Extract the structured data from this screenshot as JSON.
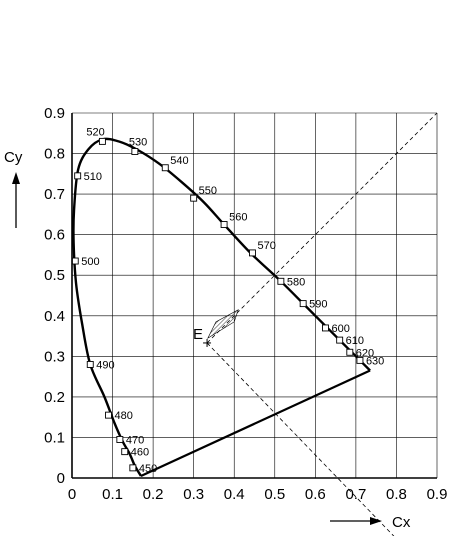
{
  "chart_data": {
    "type": "line",
    "title": "",
    "xlabel": "Cx",
    "ylabel": "Cy",
    "xlim": [
      0,
      0.9
    ],
    "ylim": [
      0,
      0.9
    ],
    "grid": true,
    "x_ticks": [
      "0",
      "0.1",
      "0.2",
      "0.3",
      "0.4",
      "0.5",
      "0.6",
      "0.7",
      "0.8",
      "0.9"
    ],
    "y_ticks": [
      "0",
      "0.1",
      "0.2",
      "0.3",
      "0.4",
      "0.5",
      "0.6",
      "0.7",
      "0.8",
      "0.9"
    ],
    "spectral_locus": {
      "x": [
        0.17,
        0.155,
        0.142,
        0.125,
        0.105,
        0.08,
        0.045,
        0.025,
        0.01,
        0.004,
        0.005,
        0.015,
        0.04,
        0.075,
        0.115,
        0.16,
        0.215,
        0.27,
        0.325,
        0.375,
        0.44,
        0.515,
        0.575,
        0.625,
        0.66,
        0.69,
        0.72,
        0.735
      ],
      "y": [
        0.005,
        0.03,
        0.06,
        0.09,
        0.135,
        0.2,
        0.28,
        0.38,
        0.48,
        0.58,
        0.66,
        0.76,
        0.81,
        0.835,
        0.83,
        0.81,
        0.775,
        0.73,
        0.68,
        0.625,
        0.555,
        0.485,
        0.425,
        0.375,
        0.34,
        0.31,
        0.28,
        0.265
      ]
    },
    "wavelength_markers": [
      {
        "label": "450",
        "x": 0.15,
        "y": 0.025
      },
      {
        "label": "460",
        "x": 0.13,
        "y": 0.065
      },
      {
        "label": "470",
        "x": 0.118,
        "y": 0.095
      },
      {
        "label": "480",
        "x": 0.09,
        "y": 0.155
      },
      {
        "label": "490",
        "x": 0.045,
        "y": 0.28
      },
      {
        "label": "500",
        "x": 0.008,
        "y": 0.535
      },
      {
        "label": "510",
        "x": 0.014,
        "y": 0.745
      },
      {
        "label": "520",
        "x": 0.075,
        "y": 0.83
      },
      {
        "label": "530",
        "x": 0.155,
        "y": 0.805
      },
      {
        "label": "540",
        "x": 0.23,
        "y": 0.765
      },
      {
        "label": "550",
        "x": 0.3,
        "y": 0.69
      },
      {
        "label": "560",
        "x": 0.375,
        "y": 0.625
      },
      {
        "label": "570",
        "x": 0.445,
        "y": 0.555
      },
      {
        "label": "580",
        "x": 0.515,
        "y": 0.485
      },
      {
        "label": "590",
        "x": 0.57,
        "y": 0.43
      },
      {
        "label": "600",
        "x": 0.625,
        "y": 0.37
      },
      {
        "label": "610",
        "x": 0.66,
        "y": 0.34
      },
      {
        "label": "620",
        "x": 0.685,
        "y": 0.31
      },
      {
        "label": "630",
        "x": 0.71,
        "y": 0.29
      }
    ],
    "white_point": {
      "label": "E",
      "x": 0.333,
      "y": 0.333
    },
    "hatched_region": {
      "x": [
        0.335,
        0.4,
        0.41,
        0.355
      ],
      "y": [
        0.345,
        0.385,
        0.415,
        0.385
      ]
    },
    "dashed_lines": [
      {
        "x": [
          0.333,
          0.9
        ],
        "y": [
          0.333,
          0.9
        ]
      },
      {
        "x": [
          0.333,
          0.8
        ],
        "y": [
          0.333,
          -0.15
        ]
      }
    ]
  }
}
